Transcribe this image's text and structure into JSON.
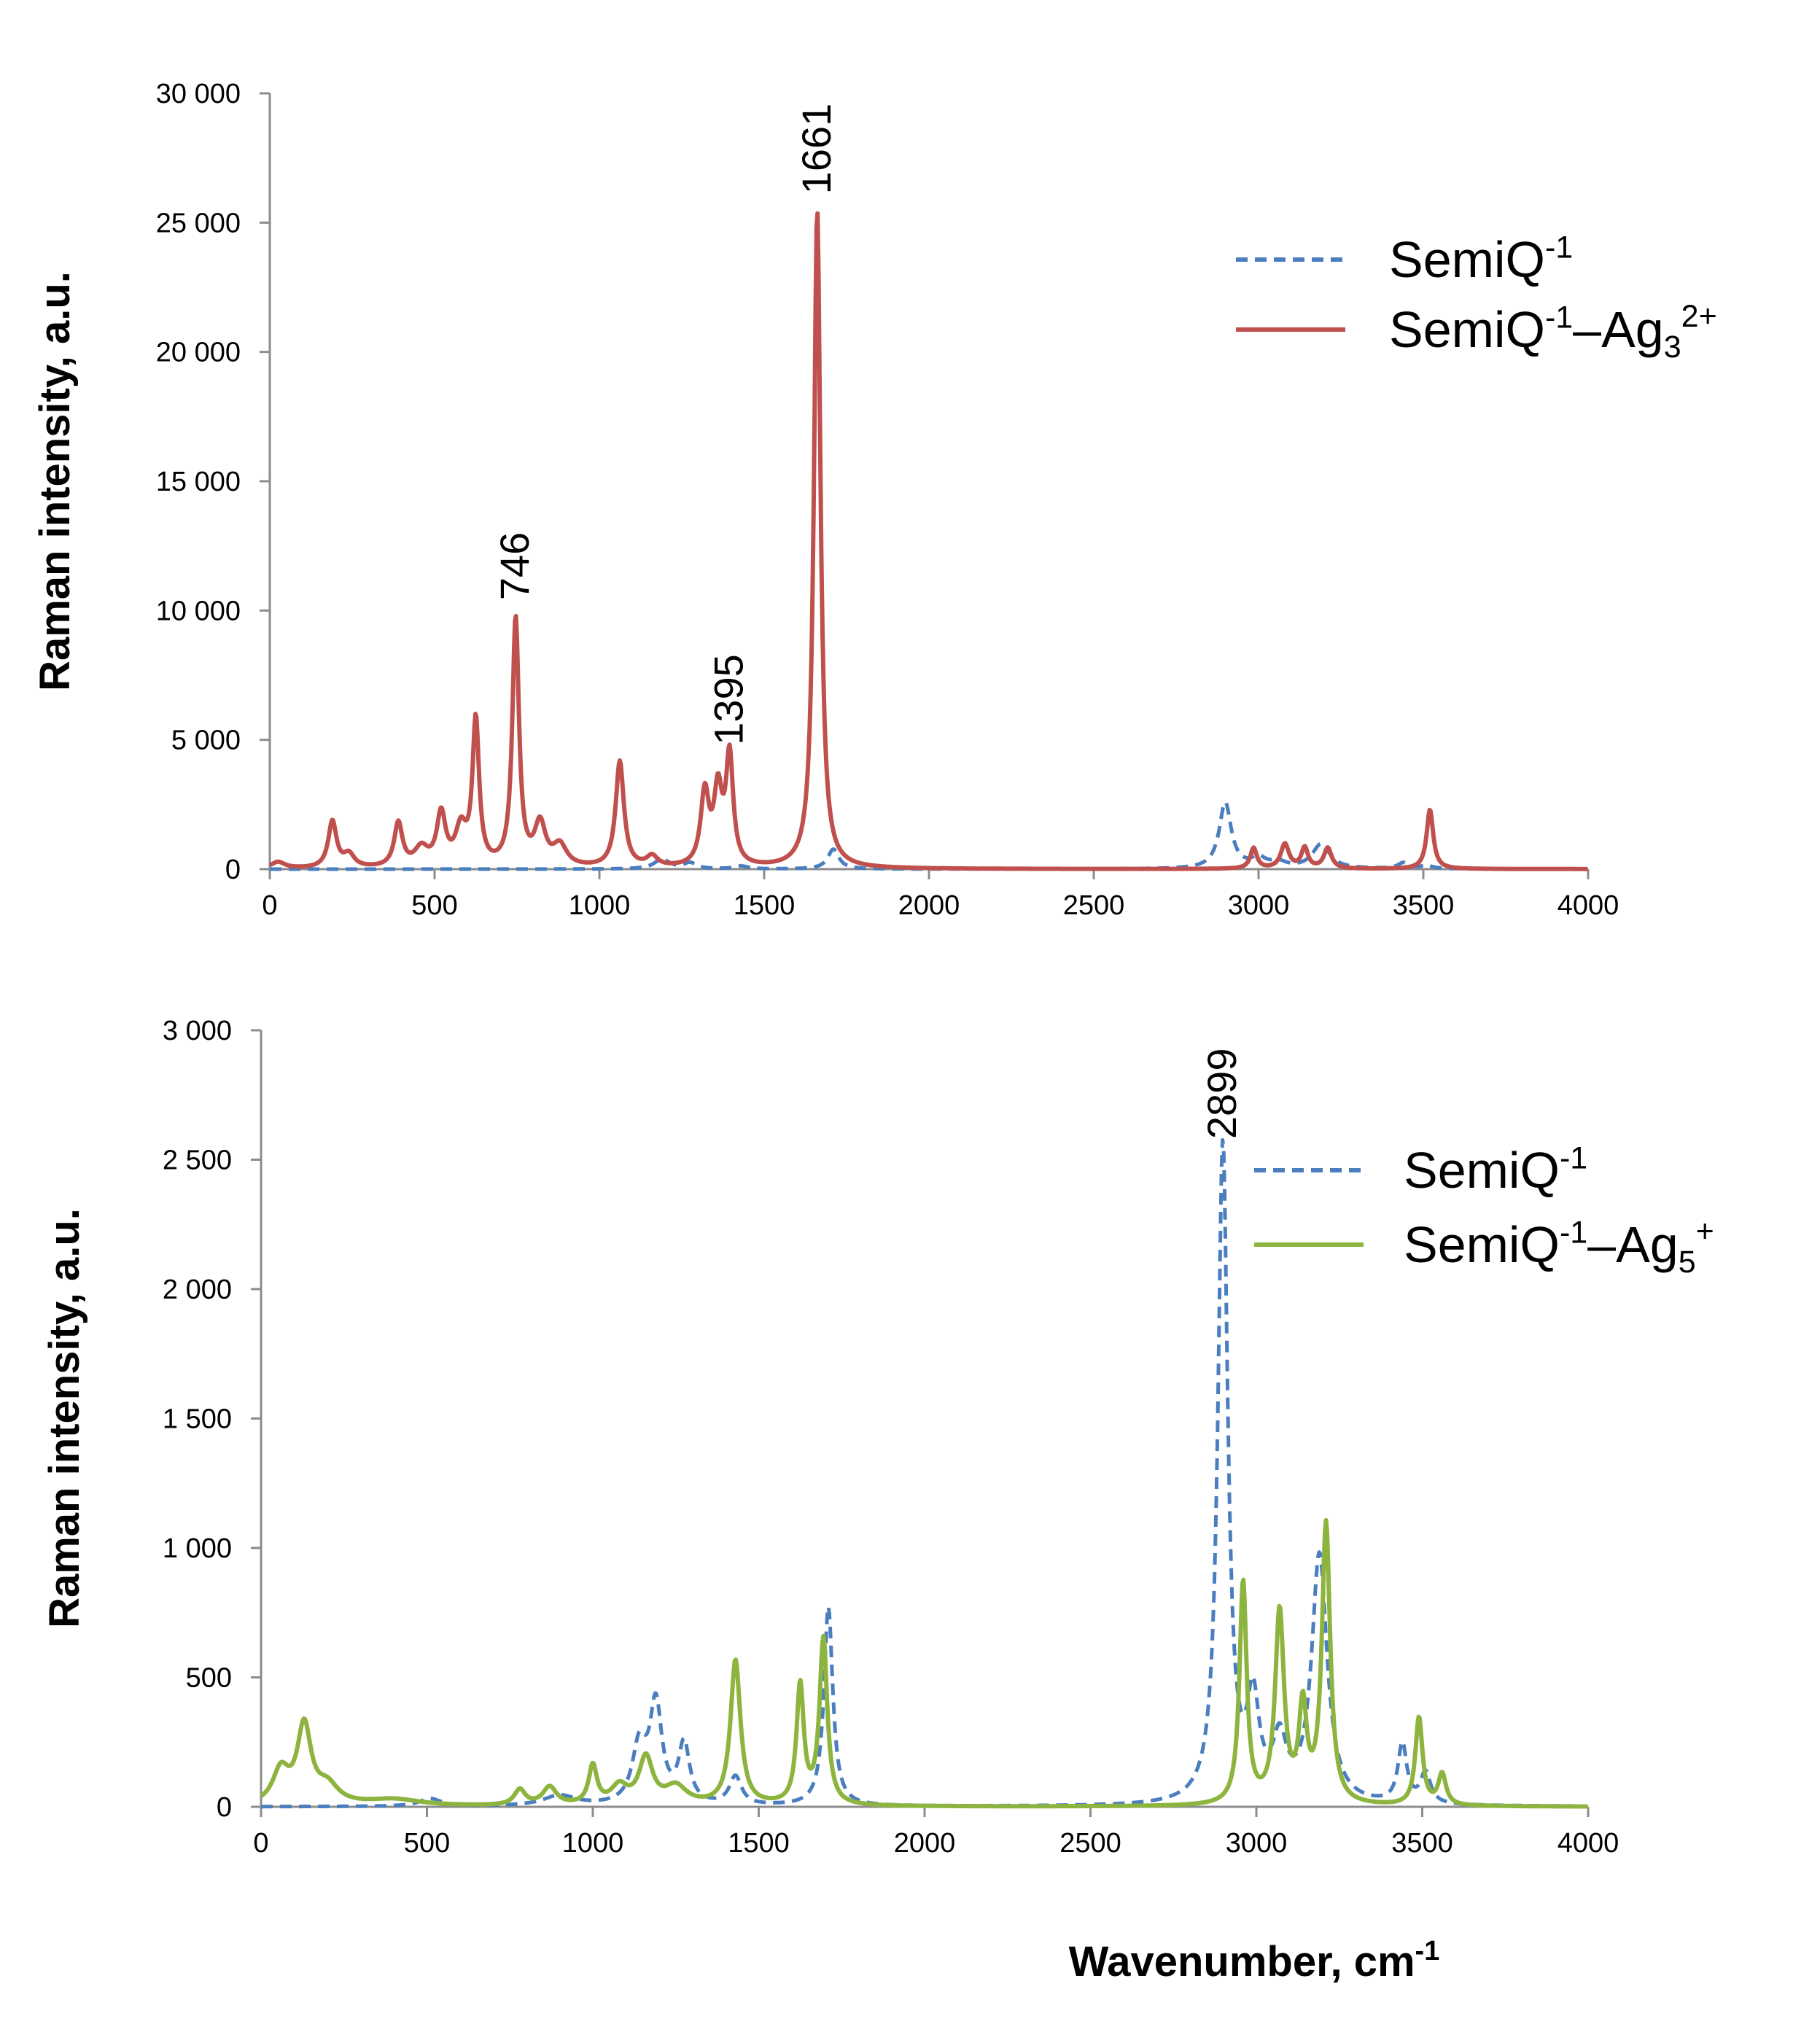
{
  "chart_data": [
    {
      "type": "line",
      "xlabel": "",
      "ylabel": "Raman intensity, a.u.",
      "xlim": [
        0,
        4000
      ],
      "ylim": [
        0,
        30000
      ],
      "x_ticks": [
        0,
        500,
        1000,
        1500,
        2000,
        2500,
        3000,
        3500,
        4000
      ],
      "x_tick_labels": [
        "0",
        "500",
        "1000",
        "1500",
        "2000",
        "2500",
        "3000",
        "3500",
        "4000"
      ],
      "y_ticks": [
        0,
        5000,
        10000,
        15000,
        20000,
        25000,
        30000
      ],
      "y_tick_labels": [
        "0",
        "5 000",
        "10 000",
        "15 000",
        "20 000",
        "25 000",
        "30 000"
      ],
      "grid": false,
      "legend_position": "top-right",
      "series": [
        {
          "name": "SemiQ-1",
          "legend": {
            "base": "SemiQ",
            "sup": "-1"
          },
          "color": "#4a7ebf",
          "style": "dashed",
          "peaks": [
            [
              1190,
              380,
              28
            ],
            [
              1275,
              230,
              22
            ],
            [
              1430,
              110,
              25
            ],
            [
              1710,
              770,
              20
            ],
            [
              2899,
              2550,
              22
            ],
            [
              3000,
              370,
              28
            ],
            [
              3060,
              220,
              28
            ],
            [
              3190,
              950,
              32
            ],
            [
              3440,
              230,
              20
            ],
            [
              3510,
              120,
              22
            ]
          ]
        },
        {
          "name": "SemiQ-1–Ag3 2+",
          "legend": {
            "base": "SemiQ",
            "sup": "-1",
            "mid": "–Ag",
            "sub": "3",
            "sup2": "2+"
          },
          "color": "#c0504d",
          "style": "solid",
          "peaks": [
            [
              25,
              250,
              25
            ],
            [
              190,
              1800,
              15
            ],
            [
              240,
              500,
              20
            ],
            [
              390,
              1700,
              15
            ],
            [
              460,
              700,
              25
            ],
            [
              520,
              2000,
              16
            ],
            [
              580,
              1400,
              20
            ],
            [
              625,
              5600,
              12
            ],
            [
              746,
              9600,
              12
            ],
            [
              820,
              1600,
              20
            ],
            [
              880,
              800,
              25
            ],
            [
              1062,
              4100,
              15
            ],
            [
              1160,
              400,
              20
            ],
            [
              1320,
              2800,
              15
            ],
            [
              1360,
              2800,
              15
            ],
            [
              1395,
              4200,
              13
            ],
            [
              1661,
              25500,
              12
            ],
            [
              2985,
              800,
              12
            ],
            [
              3080,
              950,
              15
            ],
            [
              3140,
              800,
              12
            ],
            [
              3210,
              800,
              14
            ],
            [
              3520,
              2300,
              12
            ]
          ]
        }
      ],
      "annotations": [
        {
          "label": "746",
          "x": 746,
          "y": 10400
        },
        {
          "label": "1395",
          "x": 1395,
          "y": 4800
        },
        {
          "label": "1661",
          "x": 1661,
          "y": 26100
        }
      ]
    },
    {
      "type": "line",
      "xlabel": "Wavenumber, cm-1",
      "xlabel_parts": {
        "base": "Wavenumber, cm",
        "sup": "-1"
      },
      "ylabel": "Raman intensity, a.u.",
      "xlim": [
        0,
        4000
      ],
      "ylim": [
        0,
        3000
      ],
      "x_ticks": [
        0,
        500,
        1000,
        1500,
        2000,
        2500,
        3000,
        3500,
        4000
      ],
      "x_tick_labels": [
        "0",
        "500",
        "1000",
        "1500",
        "2000",
        "2500",
        "3000",
        "3500",
        "4000"
      ],
      "y_ticks": [
        0,
        500,
        1000,
        1500,
        2000,
        2500,
        3000
      ],
      "y_tick_labels": [
        "0",
        "500",
        "1 000",
        "1 500",
        "2 000",
        "2 500",
        "3 000"
      ],
      "grid": false,
      "legend_position": "top-right",
      "series": [
        {
          "name": "SemiQ-1",
          "legend": {
            "base": "SemiQ",
            "sup": "-1"
          },
          "color": "#4a7ebf",
          "style": "dashed",
          "peaks": [
            [
              510,
              30,
              40
            ],
            [
              900,
              40,
              60
            ],
            [
              1140,
              220,
              25
            ],
            [
              1190,
              380,
              22
            ],
            [
              1275,
              230,
              20
            ],
            [
              1430,
              110,
              22
            ],
            [
              1710,
              770,
              16
            ],
            [
              2899,
              2550,
              18
            ],
            [
              2990,
              370,
              22
            ],
            [
              3070,
              220,
              25
            ],
            [
              3190,
              960,
              28
            ],
            [
              3440,
              230,
              16
            ],
            [
              3510,
              120,
              18
            ]
          ]
        },
        {
          "name": "SemiQ-1–Ag5+",
          "legend": {
            "base": "SemiQ",
            "sup": "-1",
            "mid": "–Ag",
            "sub": "5",
            "sup2": "+"
          },
          "color": "#8db43e",
          "style": "solid",
          "peaks": [
            [
              60,
              130,
              30
            ],
            [
              130,
              300,
              25
            ],
            [
              200,
              70,
              40
            ],
            [
              400,
              25,
              100
            ],
            [
              780,
              60,
              20
            ],
            [
              870,
              70,
              25
            ],
            [
              1000,
              150,
              15
            ],
            [
              1080,
              70,
              30
            ],
            [
              1160,
              180,
              25
            ],
            [
              1250,
              70,
              40
            ],
            [
              1430,
              560,
              18
            ],
            [
              1625,
              460,
              13
            ],
            [
              1695,
              640,
              14
            ],
            [
              2960,
              860,
              13
            ],
            [
              3070,
              740,
              16
            ],
            [
              3140,
              360,
              14
            ],
            [
              3210,
              1080,
              15
            ],
            [
              3490,
              340,
              13
            ],
            [
              3560,
              120,
              14
            ]
          ]
        }
      ],
      "annotations": [
        {
          "label": "2899",
          "x": 2899,
          "y": 2580
        }
      ]
    }
  ]
}
